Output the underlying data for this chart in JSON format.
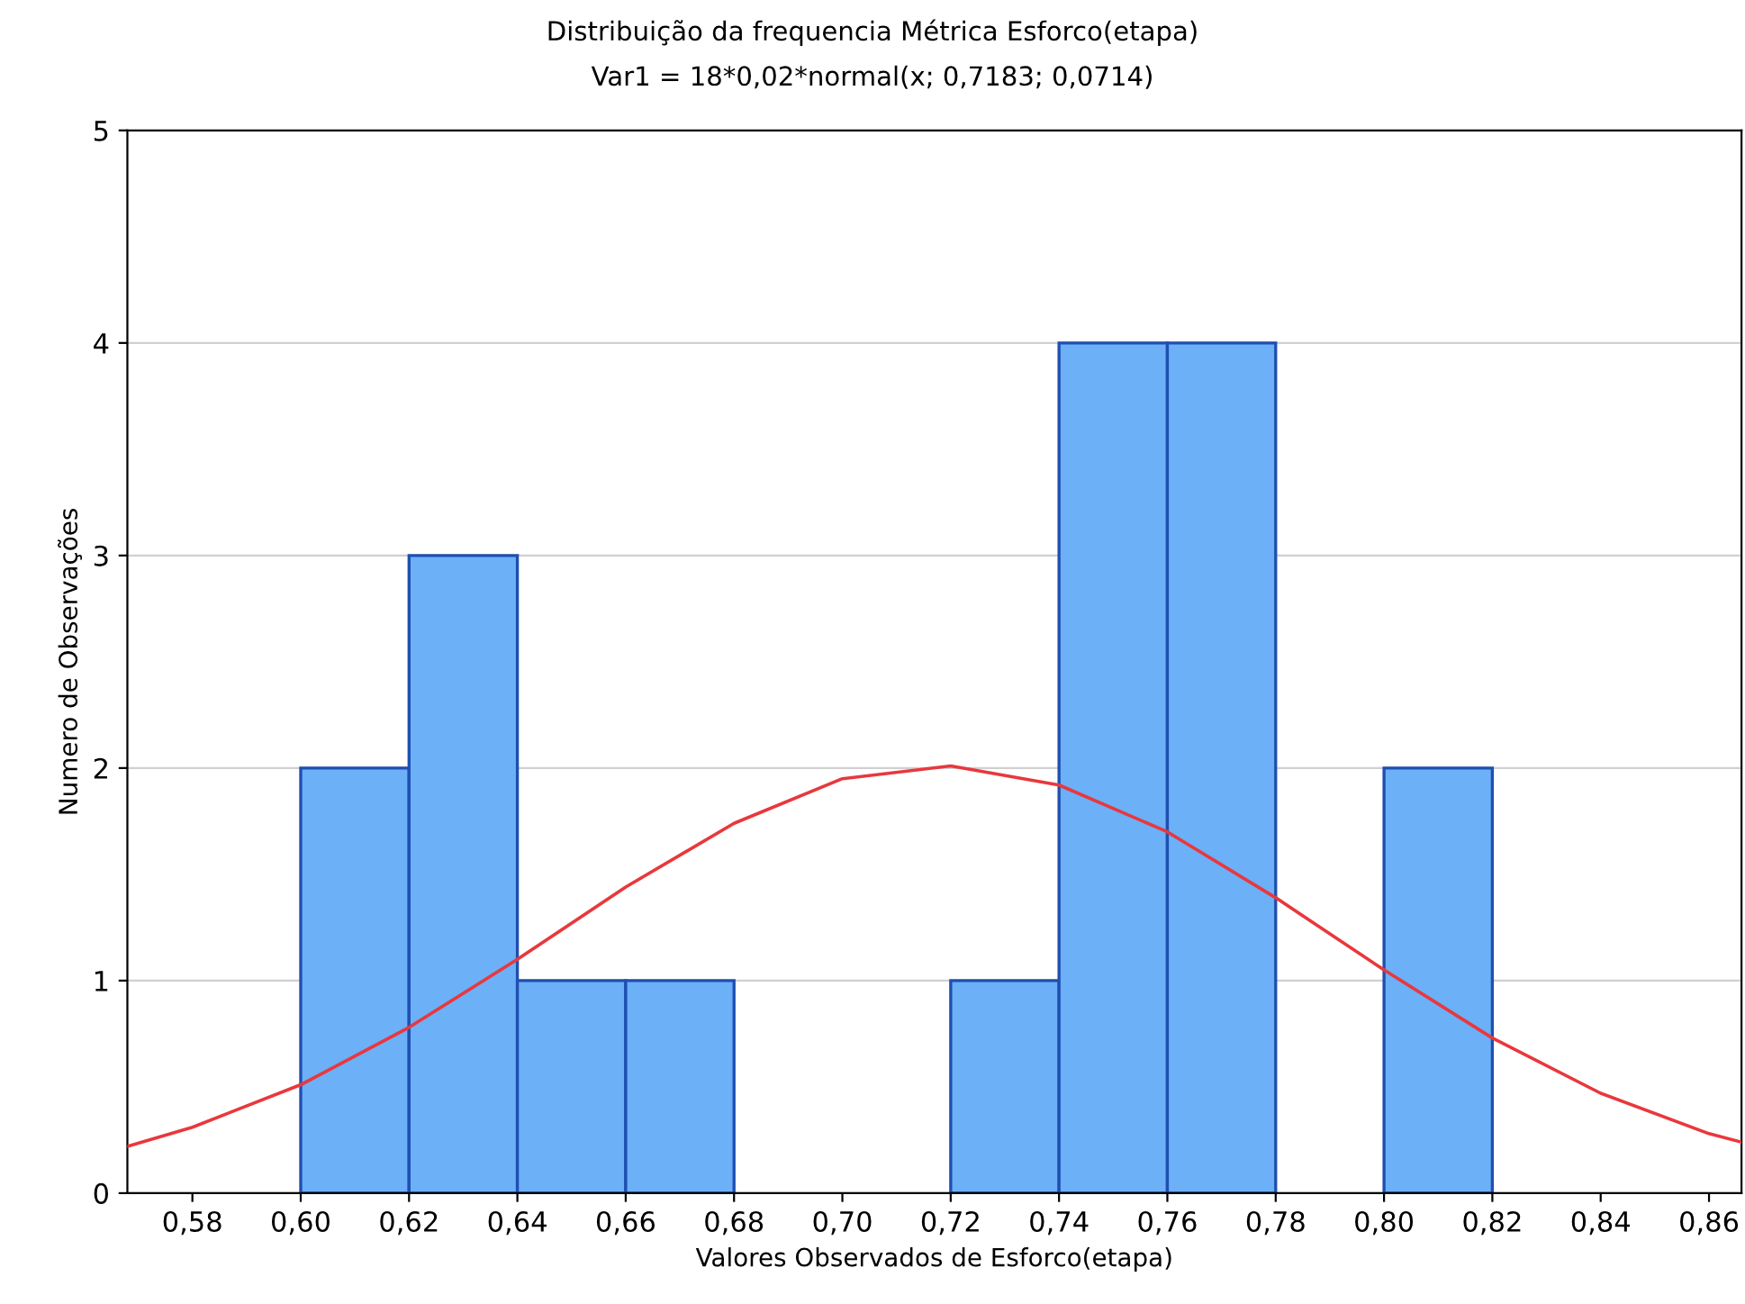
{
  "chart_data": {
    "type": "histogram",
    "title": "Distribuição da frequencia Métrica Esforco(etapa)",
    "subtitle": "Var1 = 18*0,02*normal(x; 0,7183; 0,0714)",
    "xlabel": "Valores Observados de Esforco(etapa)",
    "ylabel": "Numero de Observações",
    "bins": [
      0.6,
      0.62,
      0.64,
      0.66,
      0.68,
      0.7,
      0.72,
      0.74,
      0.76,
      0.78,
      0.8,
      0.82
    ],
    "values": [
      2,
      3,
      1,
      1,
      0,
      0,
      1,
      4,
      4,
      0,
      2
    ],
    "color": "#6cb0f7",
    "series": [
      {
        "type": "line",
        "color": "#e8383d",
        "x": [
          0.568,
          0.58,
          0.6,
          0.62,
          0.64,
          0.66,
          0.68,
          0.7,
          0.72,
          0.74,
          0.76,
          0.78,
          0.8,
          0.82,
          0.84,
          0.86,
          0.866
        ],
        "values": [
          0.22,
          0.31,
          0.51,
          0.78,
          1.1,
          1.44,
          1.74,
          1.95,
          2.01,
          1.92,
          1.7,
          1.39,
          1.05,
          0.73,
          0.47,
          0.28,
          0.24
        ]
      }
    ],
    "xlim": [
      0.568,
      0.866
    ],
    "xticks": [
      {
        "value": 0.58,
        "label": "0,58"
      },
      {
        "value": 0.6,
        "label": "0,60"
      },
      {
        "value": 0.62,
        "label": "0,62"
      },
      {
        "value": 0.64,
        "label": "0,64"
      },
      {
        "value": 0.66,
        "label": "0,66"
      },
      {
        "value": 0.68,
        "label": "0,68"
      },
      {
        "value": 0.7,
        "label": "0,70"
      },
      {
        "value": 0.72,
        "label": "0,72"
      },
      {
        "value": 0.74,
        "label": "0,74"
      },
      {
        "value": 0.76,
        "label": "0,76"
      },
      {
        "value": 0.78,
        "label": "0,78"
      },
      {
        "value": 0.8,
        "label": "0,80"
      },
      {
        "value": 0.82,
        "label": "0,82"
      },
      {
        "value": 0.84,
        "label": "0,84"
      },
      {
        "value": 0.86,
        "label": "0,86"
      }
    ],
    "ylim": [
      0,
      5
    ],
    "yticks": [
      0,
      1,
      2,
      3,
      4,
      5
    ],
    "grid": "y"
  }
}
